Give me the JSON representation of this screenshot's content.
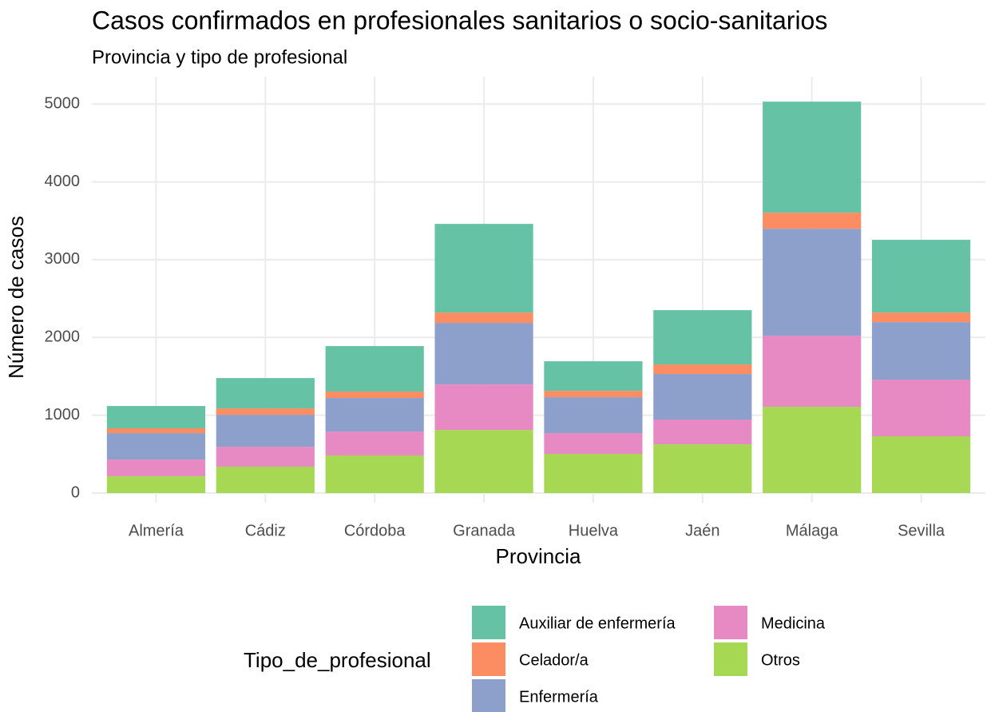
{
  "chart_data": {
    "type": "stacked_bar",
    "title": "Casos confirmados en profesionales sanitarios o socio-sanitarios",
    "subtitle": "Provincia y tipo de profesional",
    "x_label": "Provincia",
    "y_label": "Número de casos",
    "legend_title": "Tipo_de_profesional",
    "categories": [
      "Almería",
      "Cádiz",
      "Córdoba",
      "Granada",
      "Huelva",
      "Jaén",
      "Málaga",
      "Sevilla"
    ],
    "series": [
      {
        "name": "Auxiliar de enfermería",
        "color": "#66c2a5",
        "values": [
          287,
          390,
          585,
          1140,
          380,
          698,
          1427,
          935
        ]
      },
      {
        "name": "Celador/a",
        "color": "#fc8d62",
        "values": [
          62,
          82,
          82,
          133,
          82,
          123,
          206,
          123
        ]
      },
      {
        "name": "Enfermería",
        "color": "#8da0cb",
        "values": [
          339,
          411,
          432,
          791,
          462,
          585,
          1375,
          739
        ]
      },
      {
        "name": "Medicina",
        "color": "#e78ac3",
        "values": [
          215,
          256,
          307,
          585,
          267,
          319,
          914,
          729
        ]
      },
      {
        "name": "Otros",
        "color": "#a6d854",
        "values": [
          216,
          339,
          483,
          811,
          503,
          626,
          1109,
          729
        ]
      }
    ],
    "ylim": [
      0,
      5300
    ],
    "yticks": [
      0,
      1000,
      2000,
      3000,
      4000,
      5000
    ],
    "grid": true
  }
}
